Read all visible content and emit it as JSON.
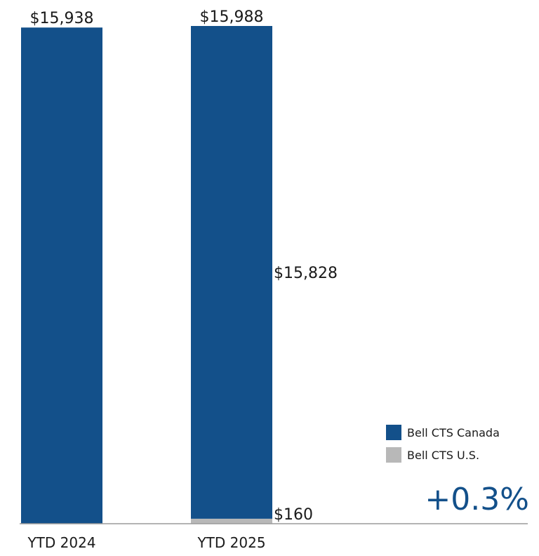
{
  "chart_data": {
    "type": "bar",
    "stacked": true,
    "categories": [
      "YTD 2024",
      "YTD 2025"
    ],
    "series": [
      {
        "name": "Bell CTS Canada",
        "values": [
          15938,
          15828
        ],
        "color": "#13508a"
      },
      {
        "name": "Bell CTS U.S.",
        "values": [
          0,
          160
        ],
        "color": "#b8b8b8"
      }
    ],
    "total_labels": [
      "$15,938",
      "$15,988"
    ],
    "segment_labels": {
      "YTD 2025": {
        "canada": "$15,828",
        "us": "$160"
      }
    },
    "ylim": [
      0,
      15988
    ],
    "grid": false,
    "legend_position": "bottom-right",
    "annotation": "+0.3%",
    "colors": {
      "canada": "#13508a",
      "us": "#b8b8b8",
      "annotation": "#13508a",
      "axis": "#9a9a9a"
    }
  }
}
